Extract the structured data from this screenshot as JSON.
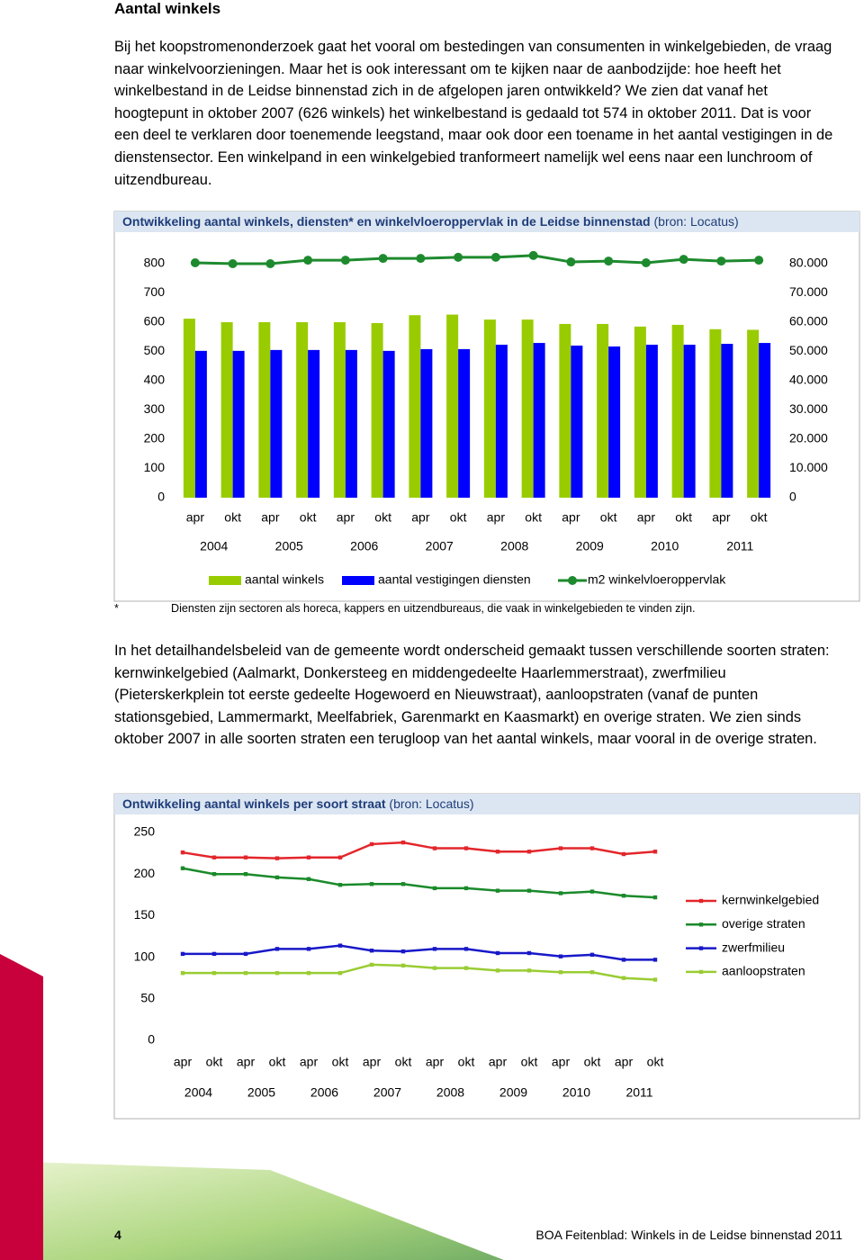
{
  "heading": "Aantal winkels",
  "paragraphs": [
    "Bij het koopstromenonderzoek gaat het vooral om bestedingen van consumenten in winkelgebieden, de vraag naar winkelvoorzieningen. Maar het is ook interessant om te kijken naar de aanbodzijde: hoe heeft het winkelbestand in de Leidse binnenstad zich in de afgelopen jaren ontwikkeld? We zien dat vanaf het hoogtepunt in oktober 2007 (626 winkels) het winkelbestand is gedaald tot 574 in oktober 2011. Dat is voor een deel te verklaren door toenemende leegstand, maar ook door een toename in het aantal vestigingen in de dienstensector. Een winkelpand in een winkelgebied tranformeert namelijk wel eens naar een lunchroom of uitzendbureau.",
    "In het detailhandelsbeleid van de gemeente wordt onderscheid gemaakt tussen verschillende soorten straten: kernwinkelgebied (Aalmarkt, Donkersteeg en middengedeelte Haarlemmerstraat), zwerfmilieu (Pieterskerkplein tot eerste gedeelte Hogewoerd en Nieuwstraat), aanloopstraten (vanaf de punten stationsgebied, Lammermarkt, Meelfabriek, Garenmarkt en Kaasmarkt) en overige straten. We zien sinds oktober 2007 in alle soorten straten een terugloop van het aantal winkels, maar vooral in de overige straten."
  ],
  "chart_data": [
    {
      "type": "bar",
      "title": "Ontwikkeling aantal winkels, diensten* en winkelvloeroppervlak in de Leidse binnenstad",
      "source": "(bron: Locatus)",
      "categories": [
        "apr",
        "okt",
        "apr",
        "okt",
        "apr",
        "okt",
        "apr",
        "okt",
        "apr",
        "okt",
        "apr",
        "okt",
        "apr",
        "okt",
        "apr",
        "okt"
      ],
      "groups": [
        "2004",
        "2005",
        "2006",
        "2007",
        "2008",
        "2009",
        "2010",
        "2011"
      ],
      "ylim": [
        0,
        800
      ],
      "yticks": [
        0,
        100,
        200,
        300,
        400,
        500,
        600,
        700,
        800
      ],
      "y2lim": [
        0,
        80000
      ],
      "y2ticks": [
        0,
        {
          "value": 10000,
          "label": "10.000"
        },
        {
          "value": 20000,
          "label": "20.000"
        },
        {
          "value": 30000,
          "label": "30.000"
        },
        {
          "value": 40000,
          "label": "40.000"
        },
        {
          "value": 50000,
          "label": "50.000"
        },
        {
          "value": 60000,
          "label": "60.000"
        },
        {
          "value": 70000,
          "label": "70.000"
        },
        {
          "value": 80000,
          "label": "80.000"
        }
      ],
      "grid": false,
      "legend": "bottom",
      "series": [
        {
          "name": "aantal winkels",
          "type": "bar",
          "color": "#99cc00",
          "values": [
            612,
            600,
            600,
            600,
            600,
            597,
            624,
            626,
            609,
            609,
            594,
            594,
            585,
            591,
            576,
            574
          ]
        },
        {
          "name": "aantal vestigingen diensten",
          "type": "bar",
          "color": "#0000ff",
          "values": [
            502,
            502,
            505,
            505,
            505,
            502,
            508,
            508,
            523,
            529,
            520,
            517,
            523,
            523,
            526,
            529
          ]
        },
        {
          "name": "m2 winkelvloeroppervlak",
          "type": "line",
          "axis": "y2",
          "color": "#1e8a2e",
          "values": [
            80300,
            80000,
            80000,
            81200,
            81200,
            81800,
            81800,
            82200,
            82200,
            82800,
            80600,
            80900,
            80300,
            81500,
            80900,
            81200
          ]
        }
      ]
    },
    {
      "type": "line",
      "title": "Ontwikkeling aantal winkels per soort straat",
      "source": "(bron: Locatus)",
      "categories": [
        "apr",
        "okt",
        "apr",
        "okt",
        "apr",
        "okt",
        "apr",
        "okt",
        "apr",
        "okt",
        "apr",
        "okt",
        "apr",
        "okt",
        "apr",
        "okt"
      ],
      "groups": [
        "2004",
        "2005",
        "2006",
        "2007",
        "2008",
        "2009",
        "2010",
        "2011"
      ],
      "ylim": [
        0,
        250
      ],
      "yticks": [
        0,
        50,
        100,
        150,
        200,
        250
      ],
      "grid": false,
      "legend": "right",
      "series": [
        {
          "name": "kernwinkelgebied",
          "color": "#e3262b",
          "values": [
            226,
            220,
            220,
            219,
            220,
            220,
            236,
            238,
            231,
            231,
            227,
            227,
            231,
            231,
            224,
            227
          ]
        },
        {
          "name": "overige straten",
          "color": "#1a8a2a",
          "values": [
            207,
            200,
            200,
            196,
            194,
            187,
            188,
            188,
            183,
            183,
            180,
            180,
            177,
            179,
            174,
            172
          ]
        },
        {
          "name": "zwerfmilieu",
          "color": "#1818c8",
          "values": [
            104,
            104,
            104,
            110,
            110,
            114,
            108,
            107,
            110,
            110,
            105,
            105,
            101,
            103,
            97,
            97
          ]
        },
        {
          "name": "aanloopstraten",
          "color": "#99cc33",
          "values": [
            81,
            81,
            81,
            81,
            81,
            81,
            91,
            90,
            87,
            87,
            84,
            84,
            82,
            82,
            75,
            73
          ]
        }
      ]
    }
  ],
  "footnote": {
    "marker": "*",
    "text": "Diensten zijn sectoren als horeca, kappers en uitzendbureaus, die vaak in winkelgebieden te vinden zijn."
  },
  "footer": {
    "page": 4,
    "title": "BOA Feitenblad: Winkels in de Leidse binnenstad 2011"
  }
}
